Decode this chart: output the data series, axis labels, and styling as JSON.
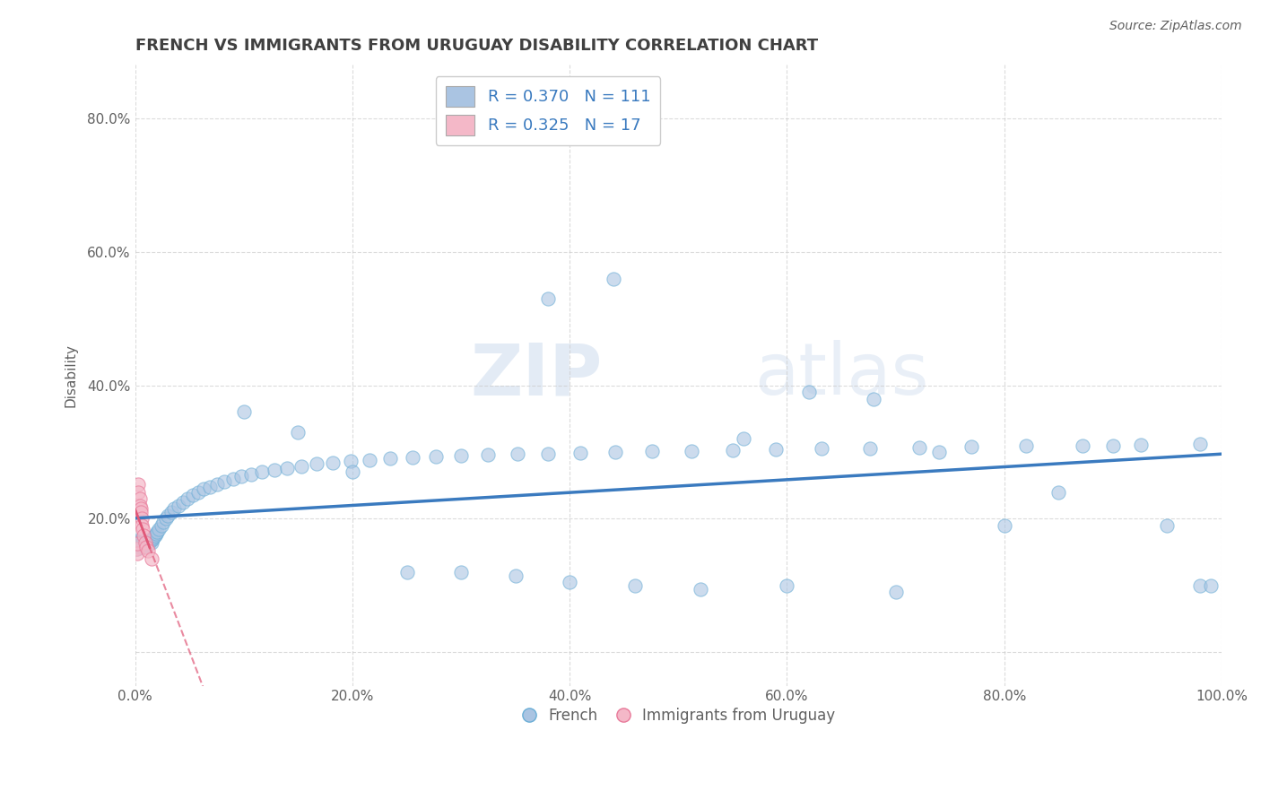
{
  "title": "FRENCH VS IMMIGRANTS FROM URUGUAY DISABILITY CORRELATION CHART",
  "source": "Source: ZipAtlas.com",
  "ylabel": "Disability",
  "xlim": [
    0.0,
    1.0
  ],
  "ylim": [
    -0.05,
    0.88
  ],
  "xticks": [
    0.0,
    0.2,
    0.4,
    0.6,
    0.8,
    1.0
  ],
  "xticklabels": [
    "0.0%",
    "20.0%",
    "40.0%",
    "60.0%",
    "80.0%",
    "100.0%"
  ],
  "yticks": [
    0.0,
    0.2,
    0.4,
    0.6,
    0.8
  ],
  "yticklabels": [
    "",
    "20.0%",
    "40.0%",
    "60.0%",
    "80.0%"
  ],
  "french_color": "#aac4e2",
  "french_edge": "#6aaed6",
  "uruguay_color": "#f4b8c8",
  "uruguay_edge": "#e87a9a",
  "trend_french_color": "#3a7abf",
  "trend_uruguay_color": "#e05878",
  "legend_french_label": "R = 0.370   N = 111",
  "legend_uruguay_label": "R = 0.325   N = 17",
  "watermark_zip": "ZIP",
  "watermark_atlas": "atlas",
  "background_color": "#ffffff",
  "grid_color": "#cccccc",
  "title_color": "#404040",
  "label_color": "#606060",
  "french_x": [
    0.001,
    0.002,
    0.002,
    0.003,
    0.003,
    0.003,
    0.004,
    0.004,
    0.004,
    0.005,
    0.005,
    0.005,
    0.006,
    0.006,
    0.006,
    0.007,
    0.007,
    0.007,
    0.008,
    0.008,
    0.008,
    0.009,
    0.009,
    0.009,
    0.01,
    0.01,
    0.011,
    0.011,
    0.012,
    0.012,
    0.013,
    0.013,
    0.014,
    0.015,
    0.015,
    0.016,
    0.017,
    0.018,
    0.019,
    0.02,
    0.022,
    0.024,
    0.026,
    0.028,
    0.03,
    0.033,
    0.036,
    0.04,
    0.044,
    0.048,
    0.053,
    0.058,
    0.063,
    0.069,
    0.075,
    0.082,
    0.09,
    0.098,
    0.107,
    0.117,
    0.128,
    0.14,
    0.153,
    0.167,
    0.182,
    0.198,
    0.216,
    0.235,
    0.255,
    0.277,
    0.3,
    0.325,
    0.352,
    0.38,
    0.41,
    0.442,
    0.476,
    0.512,
    0.55,
    0.59,
    0.632,
    0.676,
    0.722,
    0.77,
    0.82,
    0.872,
    0.926,
    0.98,
    0.44,
    0.38,
    0.56,
    0.62,
    0.68,
    0.74,
    0.8,
    0.85,
    0.9,
    0.95,
    0.98,
    0.99,
    0.1,
    0.15,
    0.2,
    0.25,
    0.3,
    0.35,
    0.4,
    0.46,
    0.52,
    0.6,
    0.7
  ],
  "french_y": [
    0.16,
    0.155,
    0.165,
    0.162,
    0.158,
    0.168,
    0.163,
    0.16,
    0.167,
    0.161,
    0.157,
    0.165,
    0.162,
    0.159,
    0.166,
    0.161,
    0.158,
    0.164,
    0.163,
    0.16,
    0.167,
    0.162,
    0.159,
    0.165,
    0.164,
    0.161,
    0.168,
    0.163,
    0.165,
    0.162,
    0.166,
    0.163,
    0.167,
    0.168,
    0.165,
    0.17,
    0.172,
    0.175,
    0.178,
    0.18,
    0.185,
    0.19,
    0.195,
    0.2,
    0.205,
    0.21,
    0.215,
    0.22,
    0.225,
    0.23,
    0.235,
    0.24,
    0.245,
    0.248,
    0.252,
    0.256,
    0.26,
    0.264,
    0.267,
    0.27,
    0.273,
    0.276,
    0.279,
    0.282,
    0.284,
    0.286,
    0.288,
    0.29,
    0.292,
    0.293,
    0.295,
    0.296,
    0.297,
    0.298,
    0.299,
    0.3,
    0.301,
    0.302,
    0.303,
    0.304,
    0.305,
    0.306,
    0.307,
    0.308,
    0.309,
    0.31,
    0.311,
    0.312,
    0.56,
    0.53,
    0.32,
    0.39,
    0.38,
    0.3,
    0.19,
    0.24,
    0.31,
    0.19,
    0.1,
    0.1,
    0.36,
    0.33,
    0.27,
    0.12,
    0.12,
    0.115,
    0.105,
    0.1,
    0.095,
    0.1,
    0.09
  ],
  "uruguay_x": [
    0.001,
    0.002,
    0.002,
    0.003,
    0.003,
    0.004,
    0.004,
    0.005,
    0.005,
    0.006,
    0.006,
    0.007,
    0.008,
    0.009,
    0.01,
    0.012,
    0.015
  ],
  "uruguay_y": [
    0.155,
    0.148,
    0.163,
    0.252,
    0.24,
    0.23,
    0.22,
    0.215,
    0.21,
    0.2,
    0.19,
    0.185,
    0.175,
    0.165,
    0.158,
    0.152,
    0.14
  ]
}
